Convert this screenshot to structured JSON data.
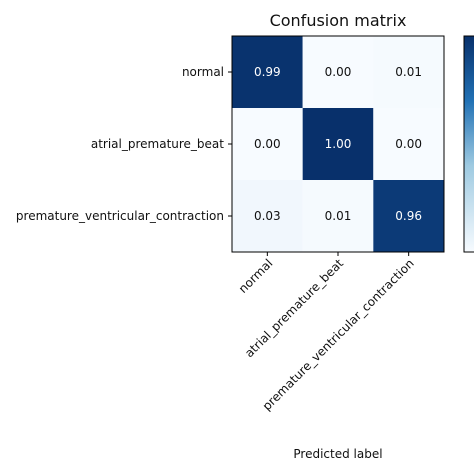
{
  "chart_data": {
    "type": "heatmap",
    "title": "Confusion matrix",
    "xlabel": "Predicted label",
    "ylabel": "",
    "row_labels": [
      "normal",
      "atrial_premature_beat",
      "premature_ventricular_contraction"
    ],
    "col_labels": [
      "normal",
      "atrial_premature_beat",
      "premature_ventricular_contraction"
    ],
    "values": [
      [
        0.99,
        0.0,
        0.01
      ],
      [
        0.0,
        1.0,
        0.0
      ],
      [
        0.03,
        0.01,
        0.96
      ]
    ],
    "value_labels": [
      [
        "0.99",
        "0.00",
        "0.01"
      ],
      [
        "0.00",
        "1.00",
        "0.00"
      ],
      [
        "0.03",
        "0.01",
        "0.96"
      ]
    ],
    "colormap": "Blues",
    "vmin": 0,
    "vmax": 1,
    "colorbar": true,
    "colors": {
      "high": "#08306b",
      "low": "#f7fbff",
      "text_dark": "#111111",
      "text_light": "#ffffff",
      "frame": "#000000"
    }
  }
}
